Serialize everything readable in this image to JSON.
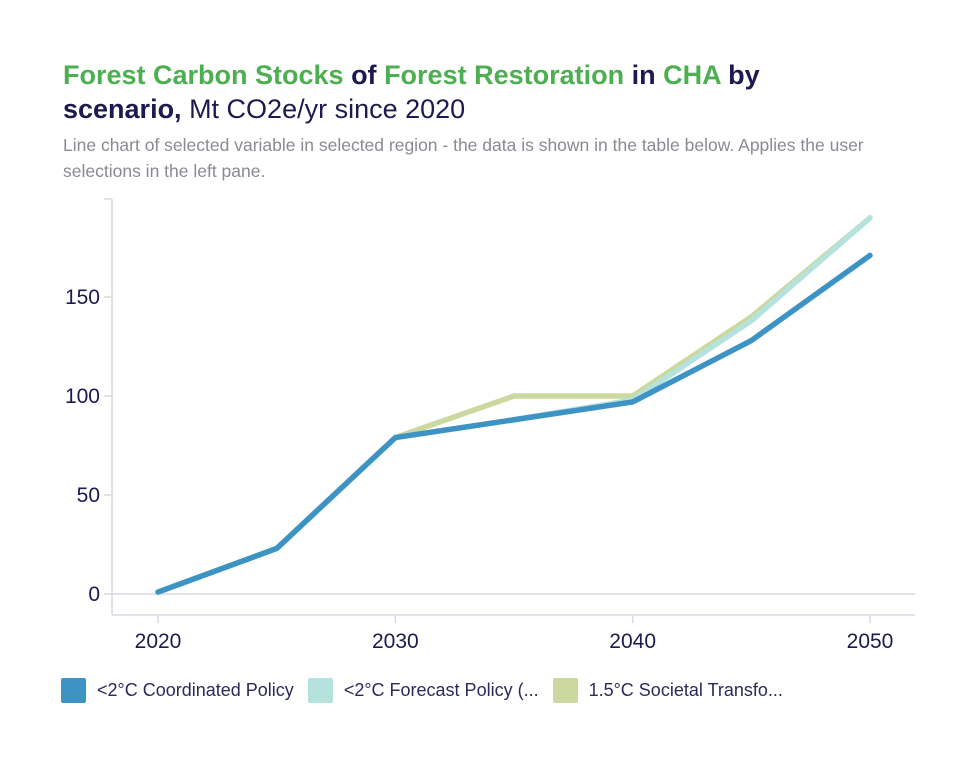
{
  "title": {
    "part1": "Forest Carbon Stocks",
    "part2": " of ",
    "part3": "Forest Restoration",
    "part4": " in ",
    "part5": "CHA",
    "part6": " by scenario,",
    "part7": " Mt CO2e/yr since 2020"
  },
  "subtitle": "Line chart of selected variable in selected region - the data is shown in the table below. Applies the user selections in the left pane.",
  "colors": {
    "highlight": "#4caf50",
    "text": "#1c1a4f",
    "axis": "#d9d9e0"
  },
  "chart_data": {
    "type": "line",
    "x": [
      2020,
      2025,
      2030,
      2035,
      2040,
      2045,
      2050
    ],
    "xticks": [
      "2020",
      "2030",
      "2040",
      "2050"
    ],
    "yticks": [
      "0",
      "50",
      "100",
      "150"
    ],
    "xlim": [
      2016,
      2052
    ],
    "ylim": [
      -10,
      200
    ],
    "grid": "zero-line only",
    "legend": "bottom",
    "series": [
      {
        "name": "1.5°C Societal Transfo...",
        "color": "#cbd89f",
        "values": [
          1,
          23,
          79,
          100,
          100,
          140,
          190
        ]
      },
      {
        "name": "<2°C Forecast Policy (...",
        "color": "#b5e2dd",
        "values": [
          1,
          23,
          79,
          88,
          98,
          138,
          190
        ]
      },
      {
        "name": "<2°C Coordinated Policy",
        "color": "#3d94c4",
        "values": [
          1,
          23,
          79,
          88,
          97,
          128,
          171
        ]
      }
    ]
  },
  "legend": [
    {
      "label": "<2°C Coordinated Policy",
      "color": "#3d94c4"
    },
    {
      "label": "<2°C Forecast Policy (...",
      "color": "#b5e2dd"
    },
    {
      "label": "1.5°C Societal Transfo...",
      "color": "#cbd89f"
    }
  ]
}
